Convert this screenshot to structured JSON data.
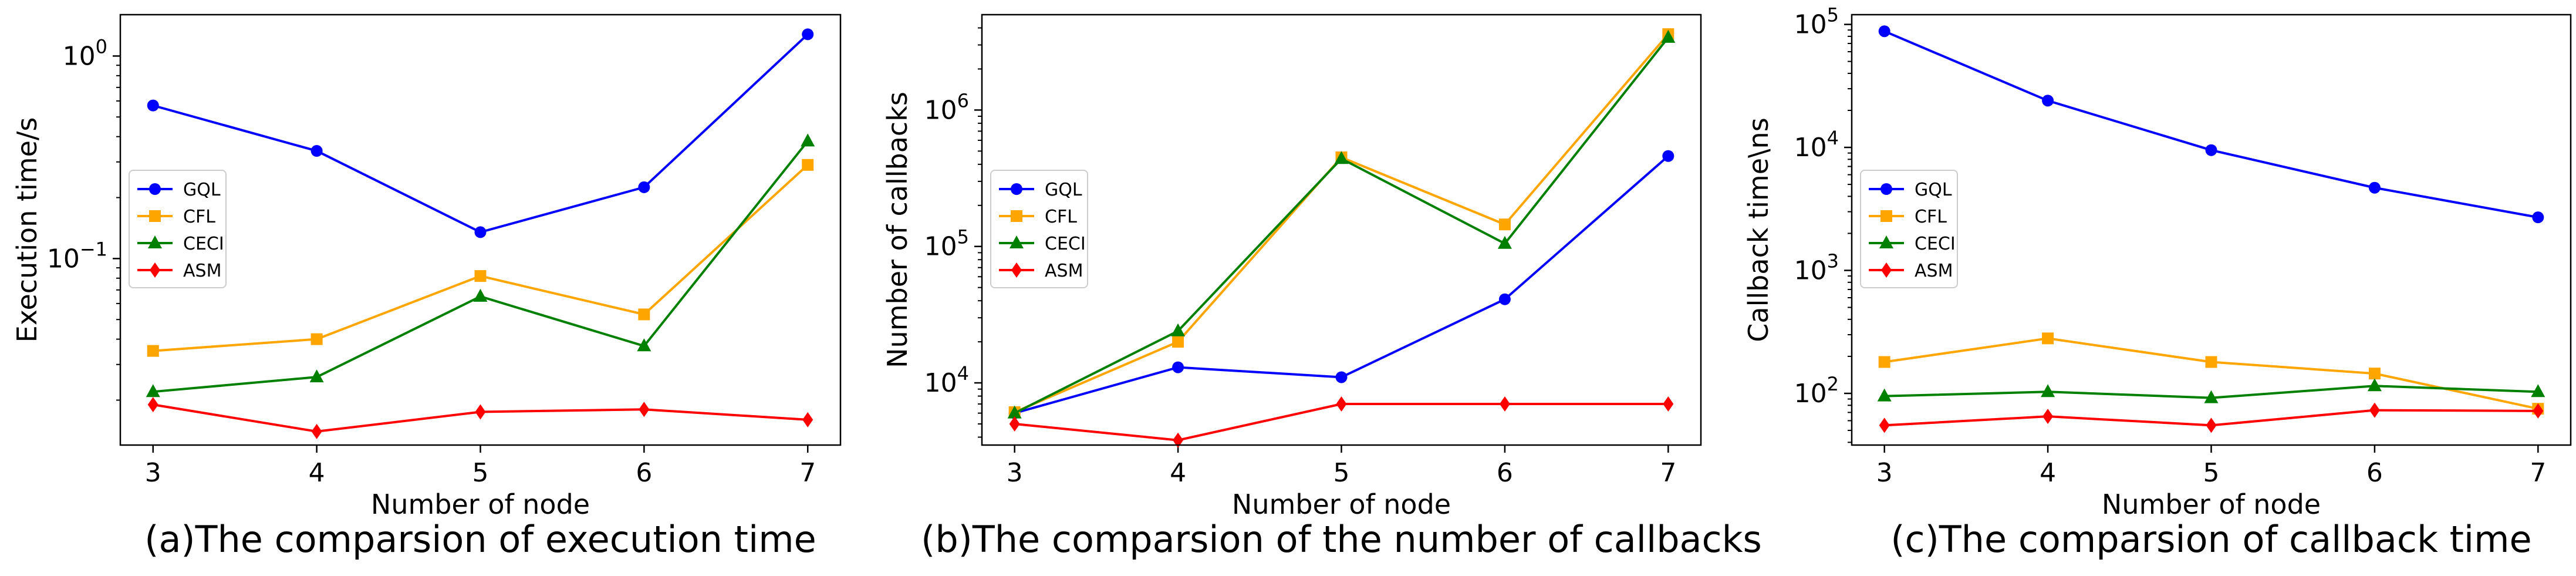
{
  "chart_data": [
    {
      "type": "line",
      "yscale": "log",
      "categories": [
        "3",
        "4",
        "5",
        "6",
        "7"
      ],
      "x": [
        3,
        4,
        5,
        6,
        7
      ],
      "xlabel": "Number of node",
      "ylabel": "Execution time/s",
      "ylim": [
        0.012,
        1.6
      ],
      "y_ticks": [
        {
          "value": 0.1,
          "base": "10",
          "exp": "−1"
        },
        {
          "value": 1,
          "base": "10",
          "exp": "0"
        }
      ],
      "caption": "(a)The comparsion of execution time",
      "legend_position": "center-left",
      "series": [
        {
          "name": "GQL",
          "color": "#0000ff",
          "marker": "circle",
          "values": [
            0.57,
            0.34,
            0.135,
            0.225,
            1.28
          ]
        },
        {
          "name": "CFL",
          "color": "#ffa500",
          "marker": "square",
          "values": [
            0.035,
            0.04,
            0.082,
            0.053,
            0.29
          ]
        },
        {
          "name": "CECI",
          "color": "#008000",
          "marker": "triangle",
          "values": [
            0.022,
            0.026,
            0.065,
            0.037,
            0.38
          ]
        },
        {
          "name": "ASM",
          "color": "#ff0000",
          "marker": "diamond",
          "values": [
            0.019,
            0.014,
            0.0175,
            0.018,
            0.016
          ]
        }
      ]
    },
    {
      "type": "line",
      "yscale": "log",
      "categories": [
        "3",
        "4",
        "5",
        "6",
        "7"
      ],
      "x": [
        3,
        4,
        5,
        6,
        7
      ],
      "xlabel": "Number of node",
      "ylabel": "Number of callbacks",
      "ylim": [
        3500,
        5000000
      ],
      "y_ticks": [
        {
          "value": 10000,
          "base": "10",
          "exp": "4"
        },
        {
          "value": 100000,
          "base": "10",
          "exp": "5"
        },
        {
          "value": 1000000,
          "base": "10",
          "exp": "6"
        }
      ],
      "caption": "(b)The comparsion of the number of callbacks",
      "legend_position": "center-left",
      "series": [
        {
          "name": "GQL",
          "color": "#0000ff",
          "marker": "circle",
          "values": [
            6000,
            13000,
            11000,
            41000,
            460000
          ]
        },
        {
          "name": "CFL",
          "color": "#ffa500",
          "marker": "square",
          "values": [
            6100,
            20000,
            450000,
            145000,
            3600000
          ]
        },
        {
          "name": "CECI",
          "color": "#008000",
          "marker": "triangle",
          "values": [
            6000,
            24000,
            440000,
            105000,
            3400000
          ]
        },
        {
          "name": "ASM",
          "color": "#ff0000",
          "marker": "diamond",
          "values": [
            5000,
            3800,
            7000,
            7000,
            7000
          ]
        }
      ]
    },
    {
      "type": "line",
      "yscale": "log",
      "categories": [
        "3",
        "4",
        "5",
        "6",
        "7"
      ],
      "x": [
        3,
        4,
        5,
        6,
        7
      ],
      "xlabel": "Number of node",
      "ylabel": "Callback time\\ns",
      "ylim": [
        38,
        120000
      ],
      "y_ticks": [
        {
          "value": 100,
          "base": "10",
          "exp": "2"
        },
        {
          "value": 1000,
          "base": "10",
          "exp": "3"
        },
        {
          "value": 10000,
          "base": "10",
          "exp": "4"
        },
        {
          "value": 100000,
          "base": "10",
          "exp": "5"
        }
      ],
      "caption": "(c)The comparsion of callback time",
      "legend_position": "center-left",
      "series": [
        {
          "name": "GQL",
          "color": "#0000ff",
          "marker": "circle",
          "values": [
            88000,
            24000,
            9500,
            4700,
            2700
          ]
        },
        {
          "name": "CFL",
          "color": "#ffa500",
          "marker": "square",
          "values": [
            180,
            280,
            180,
            145,
            75
          ]
        },
        {
          "name": "CECI",
          "color": "#008000",
          "marker": "triangle",
          "values": [
            95,
            103,
            92,
            115,
            103
          ]
        },
        {
          "name": "ASM",
          "color": "#ff0000",
          "marker": "diamond",
          "values": [
            55,
            65,
            55,
            73,
            72
          ]
        }
      ]
    }
  ]
}
